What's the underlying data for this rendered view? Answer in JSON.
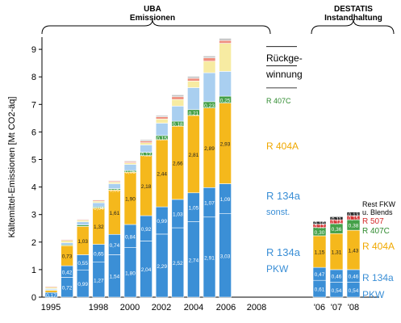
{
  "chart_data": {
    "type": "bar",
    "stacked": true,
    "ylabel": "Kältemittel-Emissionen [Mt CO2-äq]",
    "ylim": [
      0,
      9.5
    ],
    "yticks": [
      "0",
      "1",
      "2",
      "3",
      "4",
      "5",
      "6",
      "7",
      "8",
      "9"
    ],
    "group_headers": [
      {
        "title": "UBA",
        "subtitle": "Emissionen"
      },
      {
        "title": "DESTATIS",
        "subtitle": "Instandhaltung"
      }
    ],
    "group_a": {
      "x_labels": [
        "1995",
        "1998",
        "2000",
        "2002",
        "2004",
        "2006",
        "2008"
      ],
      "layer_colors": [
        "#3b8fd6",
        "#3b8fd6",
        "#f5b81c",
        "#44a048",
        "#a9cff0",
        "#f7eba2",
        "#ef8f7e",
        "#c5c5c5"
      ],
      "bars": [
        {
          "year": "1995",
          "segments": [
            0.17,
            0.0,
            0.08,
            0.02,
            0.04,
            0.05,
            0.03,
            0.02
          ],
          "labels": [
            "0,17",
            "",
            "",
            "",
            "",
            "",
            "",
            ""
          ]
        },
        {
          "year": "1997",
          "segments": [
            0.72,
            0.42,
            0.73,
            0.03,
            0.08,
            0.08,
            0.03,
            0.02
          ],
          "labels": [
            "0,72",
            "0,42",
            "0,73",
            "",
            "",
            "",
            "",
            ""
          ]
        },
        {
          "year": "1998",
          "segments": [
            0.99,
            0.55,
            1.03,
            0.05,
            0.12,
            0.06,
            0.03,
            0.02
          ],
          "labels": [
            "0,99",
            "0,55",
            "1,03",
            "",
            "",
            "",
            "",
            ""
          ]
        },
        {
          "year": "1999",
          "segments": [
            1.27,
            0.65,
            1.32,
            0.04,
            0.15,
            0.06,
            0.04,
            0.02
          ],
          "labels": [
            "1,27",
            "0,65",
            "1,32",
            "0,04",
            "",
            "",
            "",
            ""
          ]
        },
        {
          "year": "2000",
          "segments": [
            1.54,
            0.74,
            1.61,
            0.05,
            0.18,
            0.06,
            0.04,
            0.02
          ],
          "labels": [
            "1,54",
            "0,74",
            "1,61",
            "0,05",
            "",
            "",
            "",
            ""
          ]
        },
        {
          "year": "2001",
          "segments": [
            1.8,
            0.84,
            1.9,
            0.06,
            0.22,
            0.06,
            0.04,
            0.03
          ],
          "labels": [
            "1,80",
            "0,84",
            "1,90",
            "0,06",
            "",
            "",
            "",
            ""
          ]
        },
        {
          "year": "2002",
          "segments": [
            2.04,
            0.92,
            2.18,
            0.12,
            0.27,
            0.08,
            0.06,
            0.05
          ],
          "labels": [
            "2,04",
            "0,92",
            "2,18",
            "0,12",
            "",
            "",
            "",
            ""
          ]
        },
        {
          "year": "2003",
          "segments": [
            2.29,
            0.99,
            2.44,
            0.15,
            0.45,
            0.15,
            0.08,
            0.05
          ],
          "labels": [
            "2,29",
            "0,99",
            "2,44",
            "0,15",
            "",
            "",
            "",
            ""
          ]
        },
        {
          "year": "2004",
          "segments": [
            2.52,
            1.03,
            2.66,
            0.18,
            0.55,
            0.24,
            0.1,
            0.07
          ],
          "labels": [
            "2,52",
            "1,03",
            "2,66",
            "0,18",
            "",
            "",
            "",
            ""
          ]
        },
        {
          "year": "2005",
          "segments": [
            2.74,
            1.05,
            2.81,
            0.21,
            0.8,
            0.24,
            0.1,
            0.07
          ],
          "labels": [
            "2,74",
            "1,05",
            "2,81",
            "0,21",
            "",
            "",
            "",
            ""
          ]
        },
        {
          "year": "2006",
          "segments": [
            2.91,
            1.07,
            2.89,
            0.23,
            1.05,
            0.42,
            0.12,
            0.07
          ],
          "labels": [
            "2,91",
            "1,07",
            "2,89",
            "0,23",
            "",
            "",
            "",
            ""
          ]
        },
        {
          "year": "2007",
          "segments": [
            3.03,
            1.09,
            2.93,
            0.25,
            0.9,
            1.02,
            0.1,
            0.08
          ],
          "labels": [
            "3,03",
            "1,09",
            "2,93",
            "0,25",
            "",
            "",
            "",
            ""
          ]
        }
      ]
    },
    "group_b": {
      "x_labels": [
        "'06",
        "'07",
        "'08"
      ],
      "layer_colors": [
        "#3b8fd6",
        "#3b8fd6",
        "#f5b81c",
        "#44a048",
        "#d32b2b",
        "#2b2b2b"
      ],
      "bars": [
        {
          "year": "'06",
          "segments": [
            0.61,
            0.47,
            1.15,
            0.3,
            0.12,
            0.1
          ],
          "labels": [
            "0,61",
            "0,47",
            "1,15",
            "0,30",
            "0,12",
            "0,10"
          ]
        },
        {
          "year": "'07",
          "segments": [
            0.54,
            0.46,
            1.31,
            0.36,
            0.14,
            0.11
          ],
          "labels": [
            "0,54",
            "0,46",
            "1,31",
            "0,36",
            "0,14",
            "0,11"
          ]
        },
        {
          "year": "'08",
          "segments": [
            0.54,
            0.46,
            1.43,
            0.38,
            0.15,
            0.13
          ],
          "labels": [
            "0,54",
            "0,46",
            "1,43",
            "0,38",
            "0,15",
            "0,13"
          ]
        }
      ]
    },
    "legend_a": [
      {
        "text": "Rückge-",
        "color": "#000000"
      },
      {
        "text": "winnung",
        "color": "#000000"
      },
      {
        "text": "R 407C",
        "color": "#2e8a2e"
      },
      {
        "text": "R 404A",
        "color": "#f0a800"
      },
      {
        "text": "R 134a",
        "color": "#3b8fd6"
      },
      {
        "text": "sonst.",
        "color": "#3b8fd6"
      },
      {
        "text": "R 134a",
        "color": "#3b8fd6"
      },
      {
        "text": "PKW",
        "color": "#3b8fd6"
      }
    ],
    "legend_b": [
      {
        "text": "Rest FKW",
        "color": "#000000"
      },
      {
        "text": "u. Blends",
        "color": "#000000"
      },
      {
        "text": "R 507",
        "color": "#d32b2b"
      },
      {
        "text": "R 407C",
        "color": "#2e8a2e"
      },
      {
        "text": "R 404A",
        "color": "#f0a800"
      },
      {
        "text": "R 134a",
        "color": "#3b8fd6"
      },
      {
        "text": "PKW",
        "color": "#3b8fd6"
      }
    ]
  }
}
